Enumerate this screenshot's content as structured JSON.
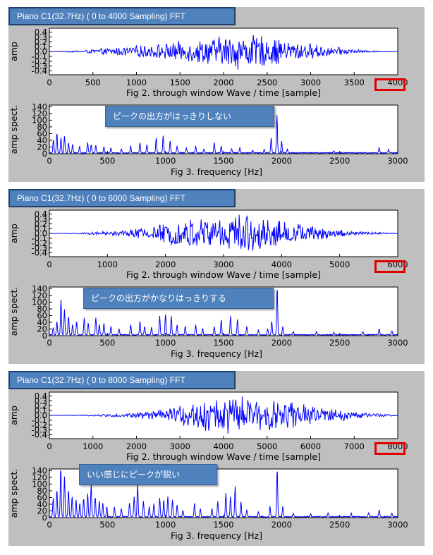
{
  "colors": {
    "signal": "#0000ff",
    "banner_bg": "#4f81bd",
    "callout_bg": "#4f81bd",
    "highlight": "#e00000",
    "panel_bg": "#bfbfbf"
  },
  "chart_data": [
    {
      "type": "line",
      "banner": "Piano C1(32.7Hz) ( 0 to 4000 Sampling)  FFT",
      "callout": "ピークの出方がはっきりしない",
      "highlighted_tick": "4000",
      "wave": {
        "xlabel": "Fig 2. through window Wave / time [sample]",
        "ylabel": "amp",
        "xlim": [
          0,
          4000
        ],
        "ylim": [
          -0.48,
          0.48
        ],
        "xticks": [
          "0",
          "500",
          "1000",
          "1500",
          "2000",
          "2500",
          "3000",
          "3500",
          "4000"
        ],
        "yticks": [
          "0.4",
          "0.3",
          "0.2",
          "0.1",
          "0.0",
          "-0.1",
          "-0.2",
          "-0.3",
          "-0.4"
        ],
        "envelope": {
          "x": [
            0,
            400,
            800,
            1200,
            1600,
            1900,
            2200,
            2500,
            2800,
            3200,
            3600,
            4000
          ],
          "y": [
            0.0,
            0.03,
            0.1,
            0.16,
            0.24,
            0.33,
            0.42,
            0.34,
            0.24,
            0.12,
            0.03,
            0.0
          ]
        }
      },
      "spectrum": {
        "xlabel": "Fig 3.  frequency [Hz]",
        "ylabel": "amp spect.",
        "xlim": [
          0,
          3000
        ],
        "ylim": [
          0,
          145
        ],
        "xticks": [
          "0",
          "500",
          "1000",
          "1500",
          "2000",
          "2500",
          "3000"
        ],
        "yticks": [
          "140",
          "120",
          "100",
          "80",
          "60",
          "40",
          "20",
          "0"
        ],
        "peaks": [
          {
            "f": 35,
            "a": 40
          },
          {
            "f": 65,
            "a": 58
          },
          {
            "f": 100,
            "a": 45
          },
          {
            "f": 130,
            "a": 50
          },
          {
            "f": 165,
            "a": 30
          },
          {
            "f": 200,
            "a": 25
          },
          {
            "f": 260,
            "a": 20
          },
          {
            "f": 330,
            "a": 30
          },
          {
            "f": 360,
            "a": 25
          },
          {
            "f": 400,
            "a": 22
          },
          {
            "f": 470,
            "a": 18
          },
          {
            "f": 530,
            "a": 15
          },
          {
            "f": 620,
            "a": 12
          },
          {
            "f": 700,
            "a": 20
          },
          {
            "f": 780,
            "a": 30
          },
          {
            "f": 840,
            "a": 25
          },
          {
            "f": 920,
            "a": 45
          },
          {
            "f": 980,
            "a": 50
          },
          {
            "f": 1040,
            "a": 35
          },
          {
            "f": 1100,
            "a": 20
          },
          {
            "f": 1180,
            "a": 15
          },
          {
            "f": 1260,
            "a": 20
          },
          {
            "f": 1330,
            "a": 12
          },
          {
            "f": 1420,
            "a": 30
          },
          {
            "f": 1480,
            "a": 20
          },
          {
            "f": 1570,
            "a": 12
          },
          {
            "f": 1640,
            "a": 15
          },
          {
            "f": 1750,
            "a": 8
          },
          {
            "f": 1850,
            "a": 10
          },
          {
            "f": 1910,
            "a": 45
          },
          {
            "f": 1960,
            "a": 113
          },
          {
            "f": 2000,
            "a": 35
          },
          {
            "f": 2050,
            "a": 10
          },
          {
            "f": 2450,
            "a": 6
          },
          {
            "f": 2840,
            "a": 15
          },
          {
            "f": 2920,
            "a": 10
          }
        ]
      }
    },
    {
      "type": "line",
      "banner": "Piano C1(32.7Hz) ( 0 to 6000 Sampling)  FFT",
      "callout": "ピークの出方がかなりはっきりする",
      "highlighted_tick": "6000",
      "wave": {
        "xlabel": "Fig 2. through window Wave / time [sample]",
        "ylabel": "amp",
        "xlim": [
          0,
          6000
        ],
        "ylim": [
          -0.48,
          0.48
        ],
        "xticks": [
          "0",
          "1000",
          "2000",
          "3000",
          "4000",
          "5000",
          "6000"
        ],
        "yticks": [
          "0.4",
          "0.3",
          "0.2",
          "0.1",
          "0.0",
          "-0.1",
          "-0.2",
          "-0.3",
          "-0.4"
        ],
        "envelope": {
          "x": [
            0,
            600,
            1200,
            1800,
            2400,
            2900,
            3200,
            3600,
            4000,
            4400,
            4800,
            5200,
            5600,
            6000
          ],
          "y": [
            0.0,
            0.02,
            0.06,
            0.18,
            0.32,
            0.4,
            0.44,
            0.38,
            0.3,
            0.2,
            0.12,
            0.06,
            0.03,
            0.01
          ]
        }
      },
      "spectrum": {
        "xlabel": "Fig 3.  frequency [Hz]",
        "ylabel": "amp spect.",
        "xlim": [
          0,
          3000
        ],
        "ylim": [
          0,
          145
        ],
        "xticks": [
          "0",
          "500",
          "1000",
          "1500",
          "2000",
          "2500",
          "3000"
        ],
        "yticks": [
          "140",
          "120",
          "100",
          "80",
          "60",
          "40",
          "20",
          "0"
        ],
        "peaks": [
          {
            "f": 33,
            "a": 20
          },
          {
            "f": 65,
            "a": 40
          },
          {
            "f": 100,
            "a": 105
          },
          {
            "f": 130,
            "a": 75
          },
          {
            "f": 165,
            "a": 55
          },
          {
            "f": 200,
            "a": 30
          },
          {
            "f": 235,
            "a": 40
          },
          {
            "f": 300,
            "a": 50
          },
          {
            "f": 335,
            "a": 35
          },
          {
            "f": 400,
            "a": 50
          },
          {
            "f": 430,
            "a": 30
          },
          {
            "f": 470,
            "a": 35
          },
          {
            "f": 530,
            "a": 25
          },
          {
            "f": 600,
            "a": 18
          },
          {
            "f": 700,
            "a": 30
          },
          {
            "f": 780,
            "a": 40
          },
          {
            "f": 820,
            "a": 25
          },
          {
            "f": 880,
            "a": 22
          },
          {
            "f": 950,
            "a": 55
          },
          {
            "f": 1000,
            "a": 60
          },
          {
            "f": 1050,
            "a": 55
          },
          {
            "f": 1100,
            "a": 30
          },
          {
            "f": 1170,
            "a": 25
          },
          {
            "f": 1260,
            "a": 30
          },
          {
            "f": 1320,
            "a": 20
          },
          {
            "f": 1420,
            "a": 25
          },
          {
            "f": 1480,
            "a": 45
          },
          {
            "f": 1560,
            "a": 55
          },
          {
            "f": 1620,
            "a": 45
          },
          {
            "f": 1700,
            "a": 25
          },
          {
            "f": 1800,
            "a": 15
          },
          {
            "f": 1880,
            "a": 18
          },
          {
            "f": 1915,
            "a": 40
          },
          {
            "f": 1962,
            "a": 140
          },
          {
            "f": 2010,
            "a": 25
          },
          {
            "f": 2100,
            "a": 10
          },
          {
            "f": 2300,
            "a": 8
          },
          {
            "f": 2450,
            "a": 8
          },
          {
            "f": 2700,
            "a": 10
          },
          {
            "f": 2840,
            "a": 18
          },
          {
            "f": 2950,
            "a": 12
          }
        ]
      }
    },
    {
      "type": "line",
      "banner": "Piano C1(32.7Hz) ( 0 to 8000 Sampling)  FFT",
      "callout": "いい感じにピークが鋭い",
      "highlighted_tick": "8000",
      "wave": {
        "xlabel": "Fig 2. through window Wave / time [sample]",
        "ylabel": "amp",
        "xlim": [
          0,
          8000
        ],
        "ylim": [
          -0.48,
          0.48
        ],
        "xticks": [
          "0",
          "1000",
          "2000",
          "3000",
          "4000",
          "5000",
          "6000",
          "7000",
          "8000"
        ],
        "yticks": [
          "0.4",
          "0.3",
          "0.2",
          "0.1",
          "0.0",
          "-0.1",
          "-0.2",
          "-0.3",
          "-0.4"
        ],
        "envelope": {
          "x": [
            0,
            800,
            1600,
            2400,
            3000,
            3600,
            4000,
            4600,
            5000,
            5600,
            6200,
            6800,
            7400,
            8000
          ],
          "y": [
            0.0,
            0.01,
            0.04,
            0.1,
            0.22,
            0.36,
            0.44,
            0.4,
            0.36,
            0.3,
            0.2,
            0.12,
            0.05,
            0.01
          ]
        }
      },
      "spectrum": {
        "xlabel": "Fig 3.  frequency [Hz]",
        "ylabel": "amp spect.",
        "xlim": [
          0,
          3000
        ],
        "ylim": [
          0,
          145
        ],
        "xticks": [
          "0",
          "500",
          "1000",
          "1500",
          "2000",
          "2500",
          "3000"
        ],
        "yticks": [
          "140",
          "120",
          "100",
          "80",
          "60",
          "40",
          "20",
          "0"
        ],
        "peaks": [
          {
            "f": 33,
            "a": 55
          },
          {
            "f": 65,
            "a": 80
          },
          {
            "f": 98,
            "a": 145
          },
          {
            "f": 130,
            "a": 120
          },
          {
            "f": 165,
            "a": 80
          },
          {
            "f": 196,
            "a": 60
          },
          {
            "f": 230,
            "a": 50
          },
          {
            "f": 262,
            "a": 40
          },
          {
            "f": 295,
            "a": 55
          },
          {
            "f": 330,
            "a": 70
          },
          {
            "f": 360,
            "a": 95
          },
          {
            "f": 395,
            "a": 60
          },
          {
            "f": 430,
            "a": 45
          },
          {
            "f": 460,
            "a": 40
          },
          {
            "f": 495,
            "a": 30
          },
          {
            "f": 560,
            "a": 30
          },
          {
            "f": 620,
            "a": 25
          },
          {
            "f": 690,
            "a": 40
          },
          {
            "f": 730,
            "a": 60
          },
          {
            "f": 760,
            "a": 95
          },
          {
            "f": 810,
            "a": 45
          },
          {
            "f": 860,
            "a": 30
          },
          {
            "f": 900,
            "a": 40
          },
          {
            "f": 950,
            "a": 55
          },
          {
            "f": 985,
            "a": 50
          },
          {
            "f": 1020,
            "a": 60
          },
          {
            "f": 1060,
            "a": 50
          },
          {
            "f": 1100,
            "a": 35
          },
          {
            "f": 1150,
            "a": 20
          },
          {
            "f": 1250,
            "a": 40
          },
          {
            "f": 1300,
            "a": 25
          },
          {
            "f": 1400,
            "a": 25
          },
          {
            "f": 1450,
            "a": 45
          },
          {
            "f": 1520,
            "a": 70
          },
          {
            "f": 1560,
            "a": 60
          },
          {
            "f": 1600,
            "a": 90
          },
          {
            "f": 1650,
            "a": 45
          },
          {
            "f": 1700,
            "a": 20
          },
          {
            "f": 1800,
            "a": 15
          },
          {
            "f": 1900,
            "a": 30
          },
          {
            "f": 1962,
            "a": 142
          },
          {
            "f": 2010,
            "a": 30
          },
          {
            "f": 2100,
            "a": 10
          },
          {
            "f": 2250,
            "a": 8
          },
          {
            "f": 2400,
            "a": 12
          },
          {
            "f": 2600,
            "a": 10
          },
          {
            "f": 2750,
            "a": 12
          },
          {
            "f": 2840,
            "a": 20
          },
          {
            "f": 2950,
            "a": 10
          }
        ]
      }
    }
  ]
}
